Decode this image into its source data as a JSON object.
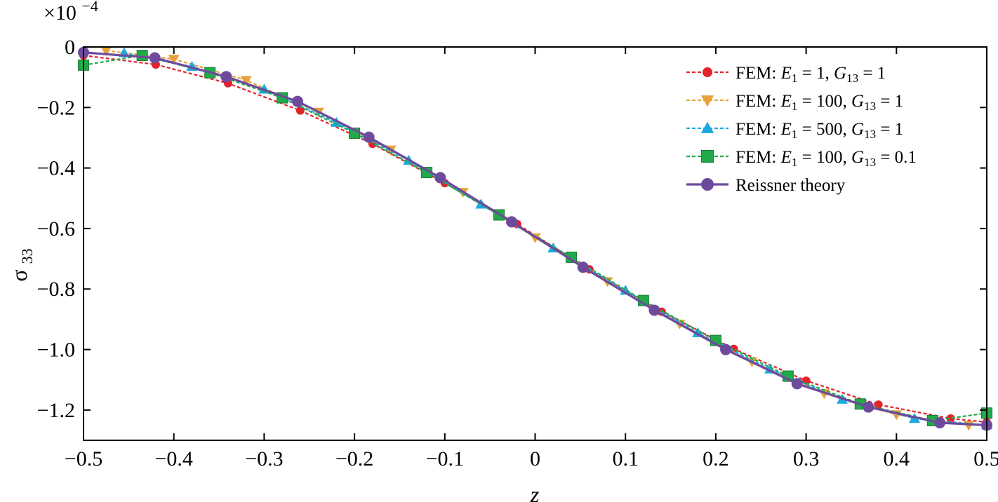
{
  "chart_data": {
    "type": "line",
    "title": "",
    "xlabel": "z",
    "ylabel_main": "σ",
    "ylabel_sub": "33",
    "multiplier_prefix": "×10",
    "multiplier_exp": "−4",
    "xlim": [
      -0.5,
      0.5
    ],
    "ylim": [
      -1.3,
      0
    ],
    "x_ticks": [
      -0.5,
      -0.4,
      -0.3,
      -0.2,
      -0.1,
      0,
      0.1,
      0.2,
      0.3,
      0.4,
      0.5
    ],
    "x_tick_labels": [
      "−0.5",
      "−0.4",
      "−0.3",
      "−0.2",
      "−0.1",
      "0",
      "0.1",
      "0.2",
      "0.3",
      "0.4",
      "0.5"
    ],
    "y_ticks": [
      0,
      -0.2,
      -0.4,
      -0.6,
      -0.8,
      -1.0,
      -1.2
    ],
    "y_tick_labels": [
      "0",
      "−0.2",
      "−0.4",
      "−0.6",
      "−0.8",
      "−1.0",
      "−1.2"
    ],
    "legend_position": "top-right",
    "grid": false,
    "series": [
      {
        "name": "FEM: E1 = 1, G13 = 1",
        "legend_parts": [
          {
            "t": "FEM: "
          },
          {
            "t": "E",
            "it": true
          },
          {
            "t": "1",
            "sub": true
          },
          {
            "t": " = 1, "
          },
          {
            "t": "G",
            "it": true
          },
          {
            "t": "13",
            "sub": true
          },
          {
            "t": " = 1"
          }
        ],
        "color": "#e3232c",
        "marker": "circle",
        "line": "dashed",
        "x": [
          -0.5,
          -0.42,
          -0.34,
          -0.26,
          -0.18,
          -0.1,
          -0.02,
          0.06,
          0.14,
          0.22,
          0.3,
          0.38,
          0.46,
          0.5
        ],
        "y": [
          -0.028,
          -0.058,
          -0.12,
          -0.21,
          -0.32,
          -0.45,
          -0.585,
          -0.735,
          -0.875,
          -0.998,
          -1.103,
          -1.182,
          -1.228,
          -1.24
        ]
      },
      {
        "name": "FEM: E1 = 100, G13 = 1",
        "legend_parts": [
          {
            "t": "FEM: "
          },
          {
            "t": "E",
            "it": true
          },
          {
            "t": "1",
            "sub": true
          },
          {
            "t": " = 100, "
          },
          {
            "t": "G",
            "it": true
          },
          {
            "t": "13",
            "sub": true
          },
          {
            "t": " = 1"
          }
        ],
        "color": "#e8a23c",
        "marker": "triangle-down",
        "line": "dashed",
        "x": [
          -0.475,
          -0.4,
          -0.32,
          -0.24,
          -0.16,
          -0.08,
          0,
          0.08,
          0.16,
          0.24,
          0.32,
          0.4,
          0.48
        ],
        "y": [
          -0.012,
          -0.04,
          -0.11,
          -0.215,
          -0.34,
          -0.48,
          -0.63,
          -0.775,
          -0.915,
          -1.04,
          -1.145,
          -1.215,
          -1.25
        ]
      },
      {
        "name": "FEM: E1 = 500, G13 = 1",
        "legend_parts": [
          {
            "t": "FEM: "
          },
          {
            "t": "E",
            "it": true
          },
          {
            "t": "1",
            "sub": true
          },
          {
            "t": " = 500, "
          },
          {
            "t": "G",
            "it": true
          },
          {
            "t": "13",
            "sub": true
          },
          {
            "t": " = 1"
          }
        ],
        "color": "#1ca9e1",
        "marker": "triangle-up",
        "line": "dashed",
        "x": [
          -0.455,
          -0.38,
          -0.3,
          -0.22,
          -0.14,
          -0.06,
          0.02,
          0.1,
          0.18,
          0.26,
          0.34,
          0.42,
          0.5
        ],
        "y": [
          -0.02,
          -0.065,
          -0.14,
          -0.25,
          -0.375,
          -0.52,
          -0.665,
          -0.805,
          -0.945,
          -1.065,
          -1.165,
          -1.228,
          -1.25
        ]
      },
      {
        "name": "FEM: E1 = 100, G13 = 0.1",
        "legend_parts": [
          {
            "t": "FEM: "
          },
          {
            "t": "E",
            "it": true
          },
          {
            "t": "1",
            "sub": true
          },
          {
            "t": " = 100, "
          },
          {
            "t": "G",
            "it": true
          },
          {
            "t": "13",
            "sub": true
          },
          {
            "t": " = 0.1"
          }
        ],
        "color": "#22a94a",
        "marker": "square",
        "line": "dashed",
        "x": [
          -0.5,
          -0.435,
          -0.36,
          -0.28,
          -0.2,
          -0.12,
          -0.04,
          0.04,
          0.12,
          0.2,
          0.28,
          0.36,
          0.44,
          0.5
        ],
        "y": [
          -0.06,
          -0.028,
          -0.085,
          -0.168,
          -0.285,
          -0.415,
          -0.555,
          -0.695,
          -0.838,
          -0.97,
          -1.088,
          -1.18,
          -1.235,
          -1.21
        ]
      },
      {
        "name": "Reissner theory",
        "legend_parts": [
          {
            "t": "Reissner theory"
          }
        ],
        "color": "#6e4a9c",
        "marker": "circle",
        "line": "solid",
        "x": [
          -0.5,
          -0.421,
          -0.342,
          -0.263,
          -0.184,
          -0.105,
          -0.026,
          0.053,
          0.132,
          0.211,
          0.29,
          0.369,
          0.448,
          0.5
        ],
        "y": [
          -0.018,
          -0.036,
          -0.098,
          -0.18,
          -0.298,
          -0.432,
          -0.578,
          -0.728,
          -0.87,
          -1.0,
          -1.113,
          -1.19,
          -1.242,
          -1.25
        ]
      }
    ]
  }
}
